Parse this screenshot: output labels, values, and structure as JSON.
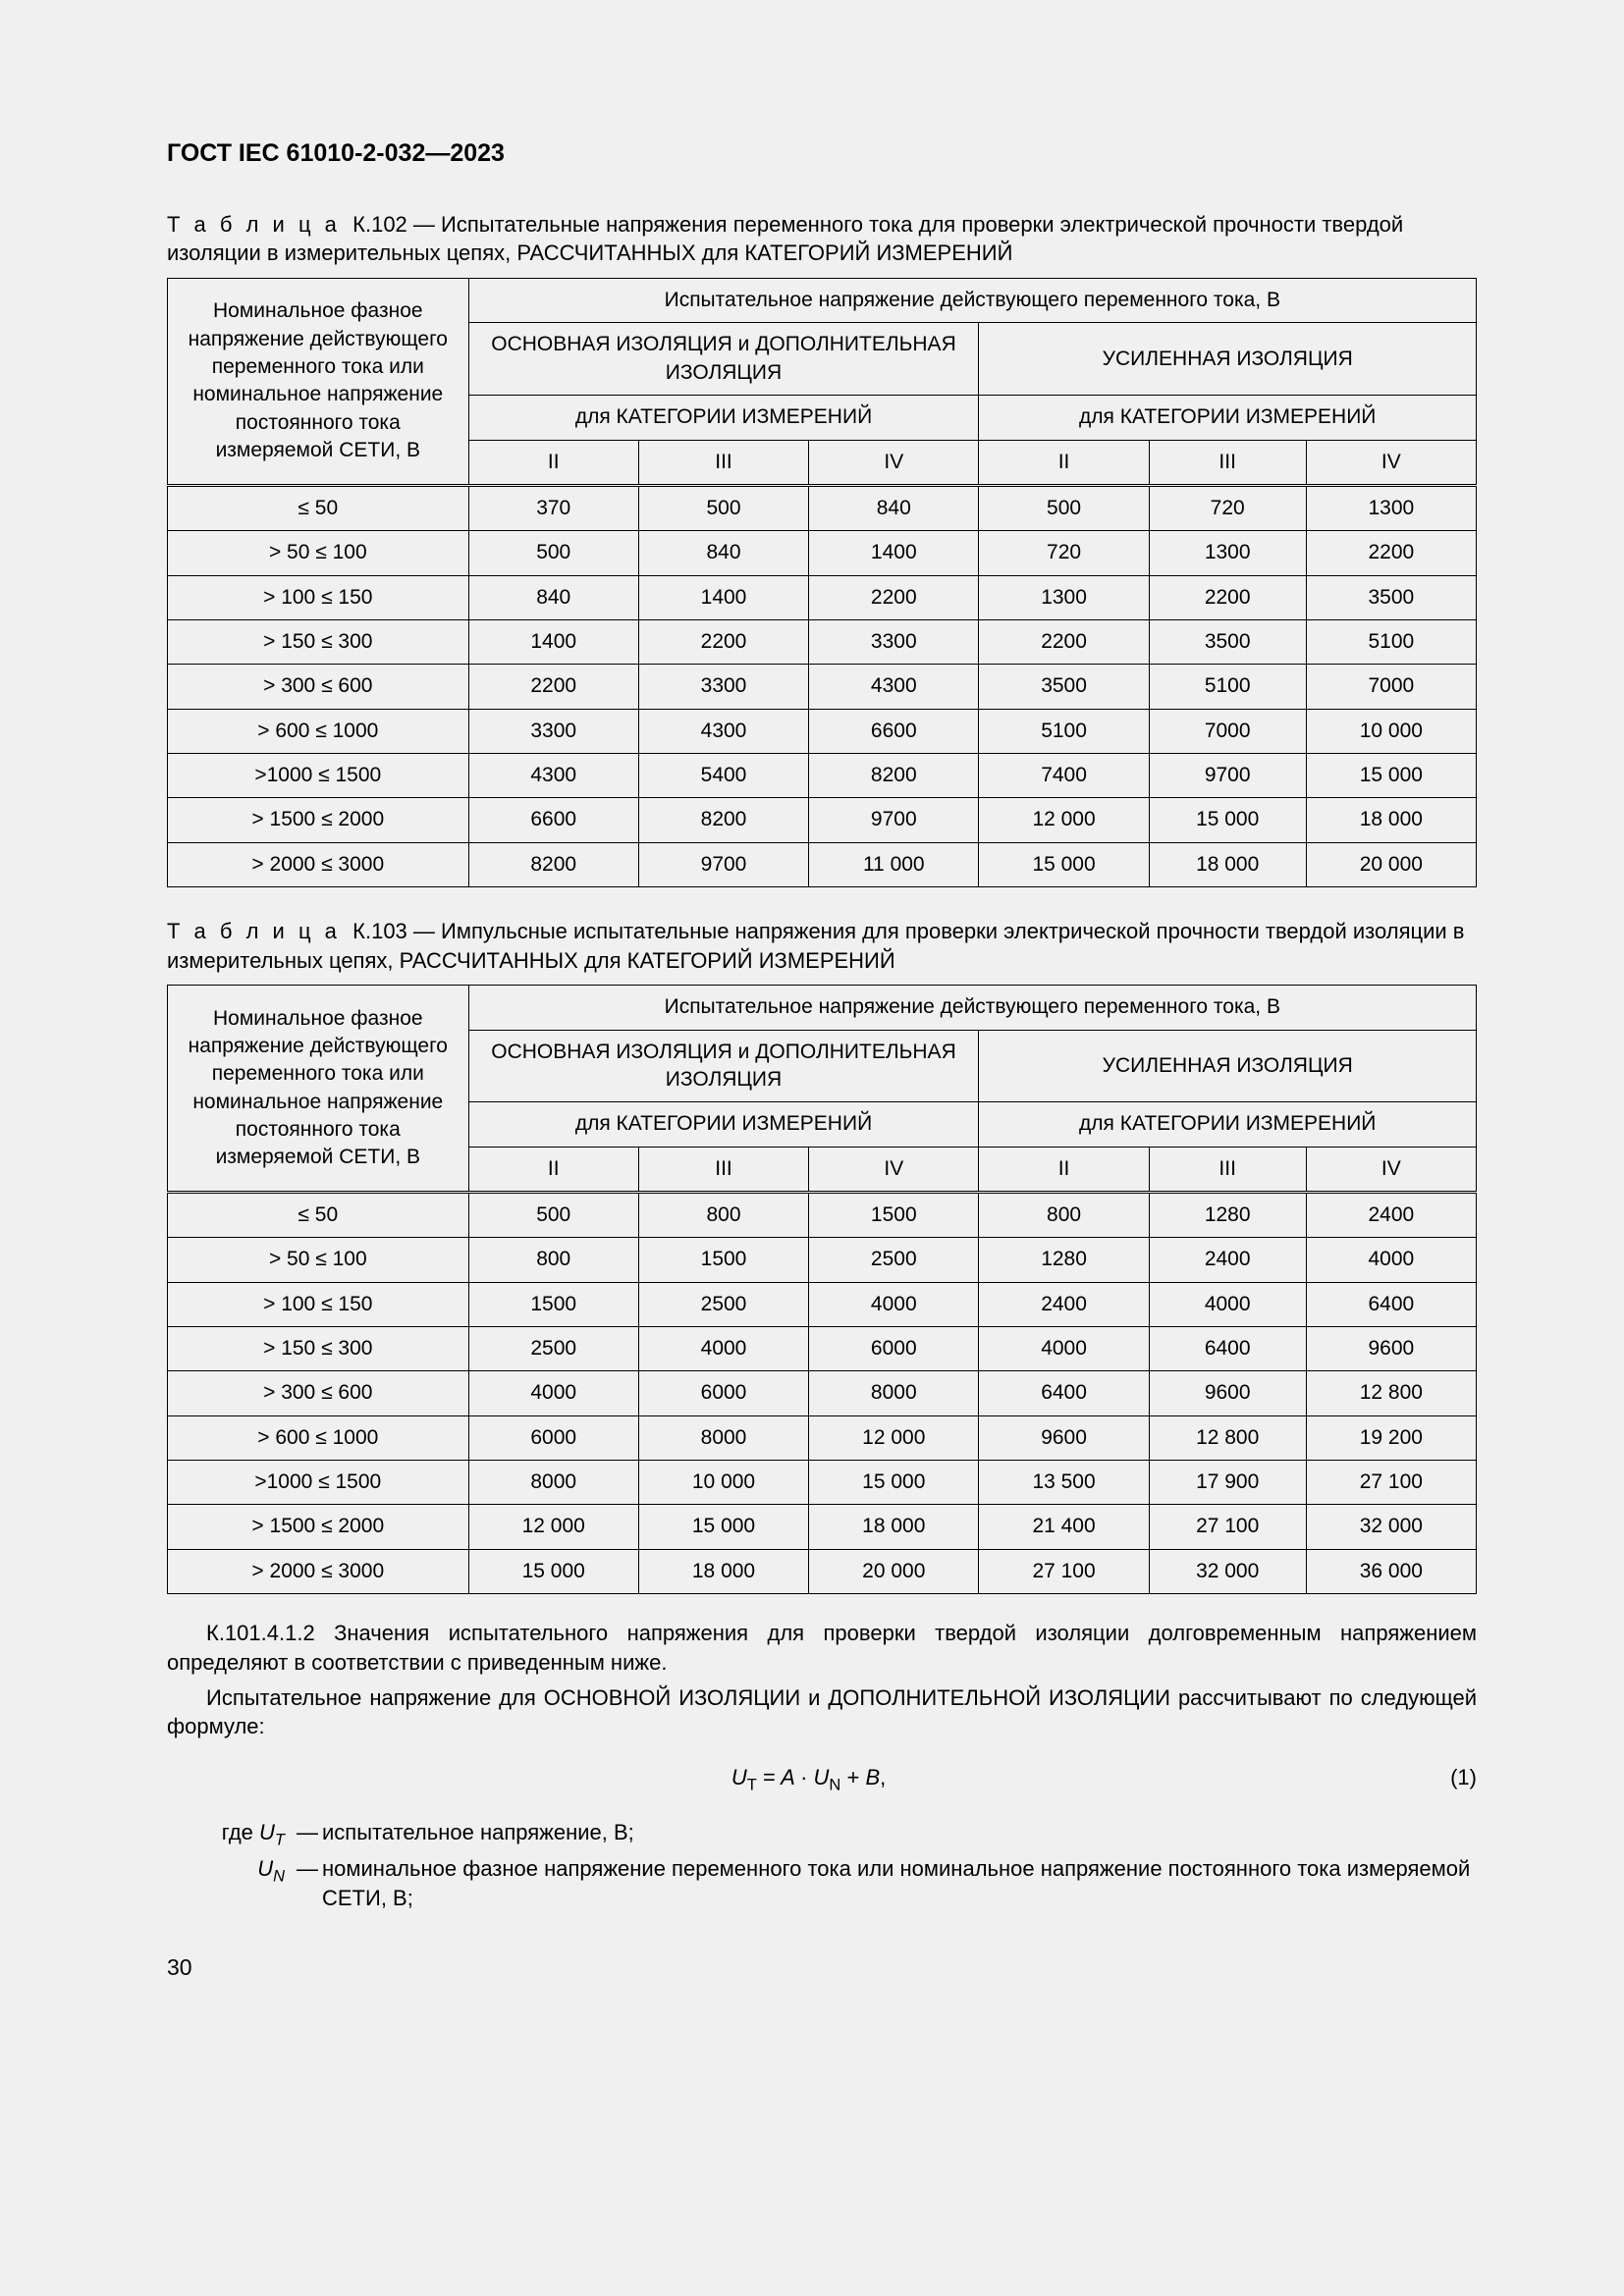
{
  "doc_header": "ГОСТ IEC 61010-2-032—2023",
  "table102": {
    "caption_label": "Т а б л и ц а",
    "caption_num": "К.102",
    "caption_text": " — Испытательные напряжения переменного тока для проверки электрической прочности твердой изоляции в измерительных цепях, РАССЧИТАННЫХ для КАТЕГОРИЙ ИЗМЕРЕНИЙ",
    "row_header": "Номинальное фазное напряжение действующего переменного тока или номинальное напряжение постоянного тока измеряемой СЕТИ, В",
    "top_header": "Испытательное напряжение действующего переменного тока, В",
    "group1": "ОСНОВНАЯ ИЗОЛЯЦИЯ и ДОПОЛНИТЕЛЬНАЯ ИЗОЛЯЦИЯ",
    "group2": "УСИЛЕННАЯ ИЗОЛЯЦИЯ",
    "sub1": "для КАТЕГОРИИ ИЗМЕРЕНИЙ",
    "sub2": "для КАТЕГОРИИ ИЗМЕРЕНИЙ",
    "cats": [
      "II",
      "III",
      "IV",
      "II",
      "III",
      "IV"
    ],
    "rows": [
      {
        "l": "≤ 50",
        "v": [
          "370",
          "500",
          "840",
          "500",
          "720",
          "1300"
        ]
      },
      {
        "l": "> 50 ≤ 100",
        "v": [
          "500",
          "840",
          "1400",
          "720",
          "1300",
          "2200"
        ]
      },
      {
        "l": "> 100 ≤ 150",
        "v": [
          "840",
          "1400",
          "2200",
          "1300",
          "2200",
          "3500"
        ]
      },
      {
        "l": "> 150 ≤ 300",
        "v": [
          "1400",
          "2200",
          "3300",
          "2200",
          "3500",
          "5100"
        ]
      },
      {
        "l": "> 300 ≤ 600",
        "v": [
          "2200",
          "3300",
          "4300",
          "3500",
          "5100",
          "7000"
        ]
      },
      {
        "l": "> 600 ≤ 1000",
        "v": [
          "3300",
          "4300",
          "6600",
          "5100",
          "7000",
          "10 000"
        ]
      },
      {
        "l": ">1000 ≤ 1500",
        "v": [
          "4300",
          "5400",
          "8200",
          "7400",
          "9700",
          "15 000"
        ]
      },
      {
        "l": "> 1500 ≤ 2000",
        "v": [
          "6600",
          "8200",
          "9700",
          "12 000",
          "15 000",
          "18 000"
        ]
      },
      {
        "l": "> 2000 ≤ 3000",
        "v": [
          "8200",
          "9700",
          "11 000",
          "15 000",
          "18 000",
          "20 000"
        ]
      }
    ]
  },
  "table103": {
    "caption_label": "Т а б л и ц а",
    "caption_num": "К.103",
    "caption_text": " — Импульсные испытательные напряжения для проверки электрической прочности твердой изоляции в измерительных цепях, РАССЧИТАННЫХ для КАТЕГОРИЙ ИЗМЕРЕНИЙ",
    "row_header": "Номинальное фазное напряжение действующего переменного тока или номинальное напряжение постоянного тока измеряемой СЕТИ, В",
    "top_header": "Испытательное напряжение действующего переменного тока, В",
    "group1": "ОСНОВНАЯ ИЗОЛЯЦИЯ и ДОПОЛНИТЕЛЬНАЯ ИЗОЛЯЦИЯ",
    "group2": "УСИЛЕННАЯ ИЗОЛЯЦИЯ",
    "sub1": "для КАТЕГОРИИ ИЗМЕРЕНИЙ",
    "sub2": "для КАТЕГОРИИ ИЗМЕРЕНИЙ",
    "cats": [
      "II",
      "III",
      "IV",
      "II",
      "III",
      "IV"
    ],
    "rows": [
      {
        "l": "≤ 50",
        "v": [
          "500",
          "800",
          "1500",
          "800",
          "1280",
          "2400"
        ]
      },
      {
        "l": "> 50 ≤ 100",
        "v": [
          "800",
          "1500",
          "2500",
          "1280",
          "2400",
          "4000"
        ]
      },
      {
        "l": "> 100 ≤ 150",
        "v": [
          "1500",
          "2500",
          "4000",
          "2400",
          "4000",
          "6400"
        ]
      },
      {
        "l": "> 150 ≤ 300",
        "v": [
          "2500",
          "4000",
          "6000",
          "4000",
          "6400",
          "9600"
        ]
      },
      {
        "l": "> 300 ≤ 600",
        "v": [
          "4000",
          "6000",
          "8000",
          "6400",
          "9600",
          "12 800"
        ]
      },
      {
        "l": "> 600 ≤ 1000",
        "v": [
          "6000",
          "8000",
          "12 000",
          "9600",
          "12 800",
          "19 200"
        ]
      },
      {
        "l": ">1000 ≤ 1500",
        "v": [
          "8000",
          "10 000",
          "15 000",
          "13 500",
          "17 900",
          "27 100"
        ]
      },
      {
        "l": "> 1500 ≤ 2000",
        "v": [
          "12 000",
          "15 000",
          "18 000",
          "21 400",
          "27 100",
          "32 000"
        ]
      },
      {
        "l": "> 2000 ≤ 3000",
        "v": [
          "15 000",
          "18 000",
          "20 000",
          "27 100",
          "32 000",
          "36 000"
        ]
      }
    ]
  },
  "para1": "К.101.4.1.2 Значения испытательного напряжения для проверки твердой изоляции долговременным напряжением определяют в соответствии с приведенным ниже.",
  "para2": "Испытательное напряжение для ОСНОВНОЙ ИЗОЛЯЦИИ и ДОПОЛНИТЕЛЬНОЙ ИЗОЛЯЦИИ рассчитывают по следующей формуле:",
  "formula_eqnum": "(1)",
  "def_where": "где",
  "def1_sym": "U",
  "def1_sub": "T",
  "def1_txt": "испытательное напряжение, В;",
  "def2_sym": "U",
  "def2_sub": "N",
  "def2_txt": "номинальное фазное напряжение переменного тока или номинальное напряжение постоянного тока измеряемой СЕТИ, В;",
  "page_number": "30"
}
